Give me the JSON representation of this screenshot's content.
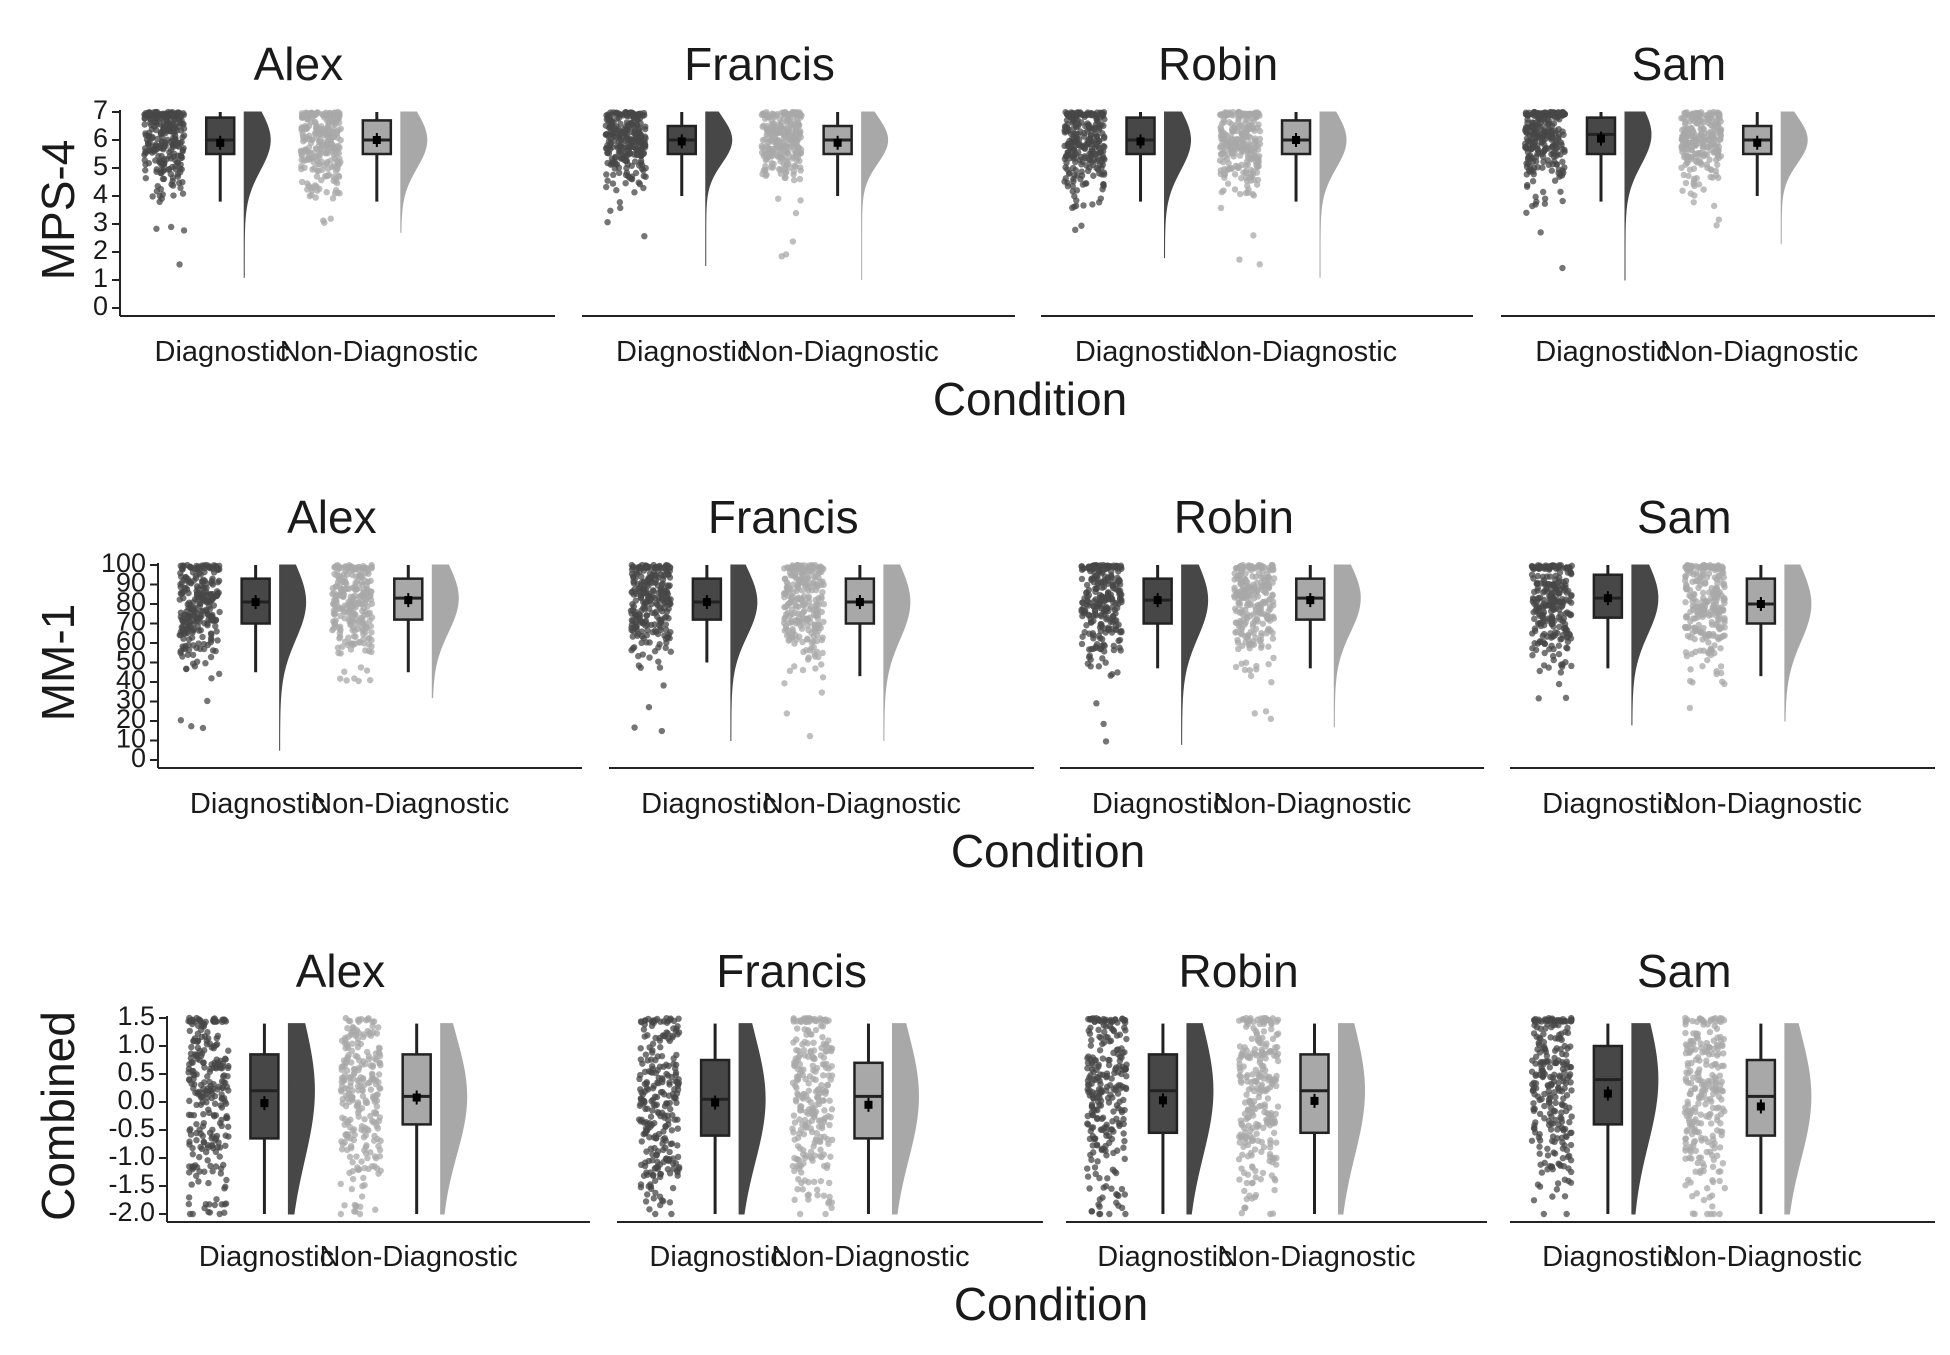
{
  "chart_data": [
    {
      "type": "raincloud",
      "ylabel": "MPS-4",
      "xlabel": "Condition",
      "y_ticks": [
        "0",
        "1",
        "2",
        "3",
        "4",
        "5",
        "6",
        "7"
      ],
      "ylim": [
        0,
        7
      ],
      "categories": [
        "Diagnostic",
        "Non-Diagnostic"
      ],
      "colors": {
        "Diagnostic": "#474747",
        "Non-Diagnostic": "#a8a8a8"
      },
      "facets": [
        {
          "title": "Alex",
          "groups": [
            {
              "condition": "Diagnostic",
              "min": 3.8,
              "q1": 5.5,
              "median": 6.0,
              "q3": 6.8,
              "max": 7.0,
              "mean": 5.9,
              "points_min": 1.1
            },
            {
              "condition": "Non-Diagnostic",
              "min": 3.8,
              "q1": 5.5,
              "median": 6.0,
              "q3": 6.7,
              "max": 7.0,
              "mean": 6.0,
              "points_min": 2.7
            }
          ]
        },
        {
          "title": "Francis",
          "groups": [
            {
              "condition": "Diagnostic",
              "min": 4.0,
              "q1": 5.5,
              "median": 6.0,
              "q3": 6.5,
              "max": 7.0,
              "mean": 5.95,
              "points_min": 1.5
            },
            {
              "condition": "Non-Diagnostic",
              "min": 4.0,
              "q1": 5.5,
              "median": 6.0,
              "q3": 6.5,
              "max": 7.0,
              "mean": 5.9,
              "points_min": 1.0
            }
          ]
        },
        {
          "title": "Robin",
          "groups": [
            {
              "condition": "Diagnostic",
              "min": 3.8,
              "q1": 5.5,
              "median": 6.0,
              "q3": 6.8,
              "max": 7.0,
              "mean": 5.95,
              "points_min": 1.8
            },
            {
              "condition": "Non-Diagnostic",
              "min": 3.8,
              "q1": 5.5,
              "median": 6.0,
              "q3": 6.7,
              "max": 7.0,
              "mean": 6.0,
              "points_min": 1.1
            }
          ]
        },
        {
          "title": "Sam",
          "groups": [
            {
              "condition": "Diagnostic",
              "min": 3.8,
              "q1": 5.5,
              "median": 6.2,
              "q3": 6.8,
              "max": 7.0,
              "mean": 6.05,
              "points_min": 1.0
            },
            {
              "condition": "Non-Diagnostic",
              "min": 4.0,
              "q1": 5.5,
              "median": 6.0,
              "q3": 6.5,
              "max": 7.0,
              "mean": 5.9,
              "points_min": 2.3
            }
          ]
        }
      ]
    },
    {
      "type": "raincloud",
      "ylabel": "MM-1",
      "xlabel": "Condition",
      "y_ticks": [
        "0",
        "10",
        "20",
        "30",
        "40",
        "50",
        "60",
        "70",
        "80",
        "90",
        "100"
      ],
      "ylim": [
        0,
        100
      ],
      "categories": [
        "Diagnostic",
        "Non-Diagnostic"
      ],
      "colors": {
        "Diagnostic": "#474747",
        "Non-Diagnostic": "#a8a8a8"
      },
      "facets": [
        {
          "title": "Alex",
          "groups": [
            {
              "condition": "Diagnostic",
              "min": 45,
              "q1": 70,
              "median": 81,
              "q3": 93,
              "max": 100,
              "mean": 81,
              "points_min": 5
            },
            {
              "condition": "Non-Diagnostic",
              "min": 45,
              "q1": 72,
              "median": 83,
              "q3": 93,
              "max": 100,
              "mean": 82,
              "points_min": 32
            }
          ]
        },
        {
          "title": "Francis",
          "groups": [
            {
              "condition": "Diagnostic",
              "min": 50,
              "q1": 72,
              "median": 81,
              "q3": 93,
              "max": 100,
              "mean": 81,
              "points_min": 10
            },
            {
              "condition": "Non-Diagnostic",
              "min": 43,
              "q1": 70,
              "median": 81,
              "q3": 93,
              "max": 100,
              "mean": 81,
              "points_min": 10
            }
          ]
        },
        {
          "title": "Robin",
          "groups": [
            {
              "condition": "Diagnostic",
              "min": 47,
              "q1": 70,
              "median": 82,
              "q3": 93,
              "max": 100,
              "mean": 82,
              "points_min": 8
            },
            {
              "condition": "Non-Diagnostic",
              "min": 47,
              "q1": 72,
              "median": 83,
              "q3": 93,
              "max": 100,
              "mean": 82,
              "points_min": 17
            }
          ]
        },
        {
          "title": "Sam",
          "groups": [
            {
              "condition": "Diagnostic",
              "min": 47,
              "q1": 73,
              "median": 83,
              "q3": 95,
              "max": 100,
              "mean": 83,
              "points_min": 18
            },
            {
              "condition": "Non-Diagnostic",
              "min": 43,
              "q1": 70,
              "median": 80,
              "q3": 93,
              "max": 100,
              "mean": 80,
              "points_min": 20
            }
          ]
        }
      ]
    },
    {
      "type": "raincloud",
      "ylabel": "Combined",
      "xlabel": "Condition",
      "y_ticks": [
        "-2.0",
        "-1.5",
        "-1.0",
        "-0.5",
        "0.0",
        "0.5",
        "1.0",
        "1.5"
      ],
      "ylim": [
        -2.0,
        1.5
      ],
      "categories": [
        "Diagnostic",
        "Non-Diagnostic"
      ],
      "colors": {
        "Diagnostic": "#474747",
        "Non-Diagnostic": "#a8a8a8"
      },
      "facets": [
        {
          "title": "Alex",
          "groups": [
            {
              "condition": "Diagnostic",
              "min": -2.0,
              "q1": -0.65,
              "median": 0.2,
              "q3": 0.85,
              "max": 1.4,
              "mean": -0.02,
              "points_min": -2.0
            },
            {
              "condition": "Non-Diagnostic",
              "min": -2.0,
              "q1": -0.4,
              "median": 0.1,
              "q3": 0.85,
              "max": 1.4,
              "mean": 0.08,
              "points_min": -2.0
            }
          ]
        },
        {
          "title": "Francis",
          "groups": [
            {
              "condition": "Diagnostic",
              "min": -2.0,
              "q1": -0.6,
              "median": 0.05,
              "q3": 0.75,
              "max": 1.4,
              "mean": -0.01,
              "points_min": -2.0
            },
            {
              "condition": "Non-Diagnostic",
              "min": -2.0,
              "q1": -0.65,
              "median": 0.1,
              "q3": 0.7,
              "max": 1.4,
              "mean": -0.05,
              "points_min": -2.0
            }
          ]
        },
        {
          "title": "Robin",
          "groups": [
            {
              "condition": "Diagnostic",
              "min": -2.0,
              "q1": -0.55,
              "median": 0.2,
              "q3": 0.85,
              "max": 1.4,
              "mean": 0.03,
              "points_min": -2.0
            },
            {
              "condition": "Non-Diagnostic",
              "min": -2.0,
              "q1": -0.55,
              "median": 0.2,
              "q3": 0.85,
              "max": 1.4,
              "mean": 0.02,
              "points_min": -2.0
            }
          ]
        },
        {
          "title": "Sam",
          "groups": [
            {
              "condition": "Diagnostic",
              "min": -2.0,
              "q1": -0.4,
              "median": 0.4,
              "q3": 1.0,
              "max": 1.4,
              "mean": 0.15,
              "points_min": -2.0
            },
            {
              "condition": "Non-Diagnostic",
              "min": -2.0,
              "q1": -0.6,
              "median": 0.1,
              "q3": 0.75,
              "max": 1.4,
              "mean": -0.08,
              "points_min": -2.0
            }
          ]
        }
      ]
    }
  ]
}
